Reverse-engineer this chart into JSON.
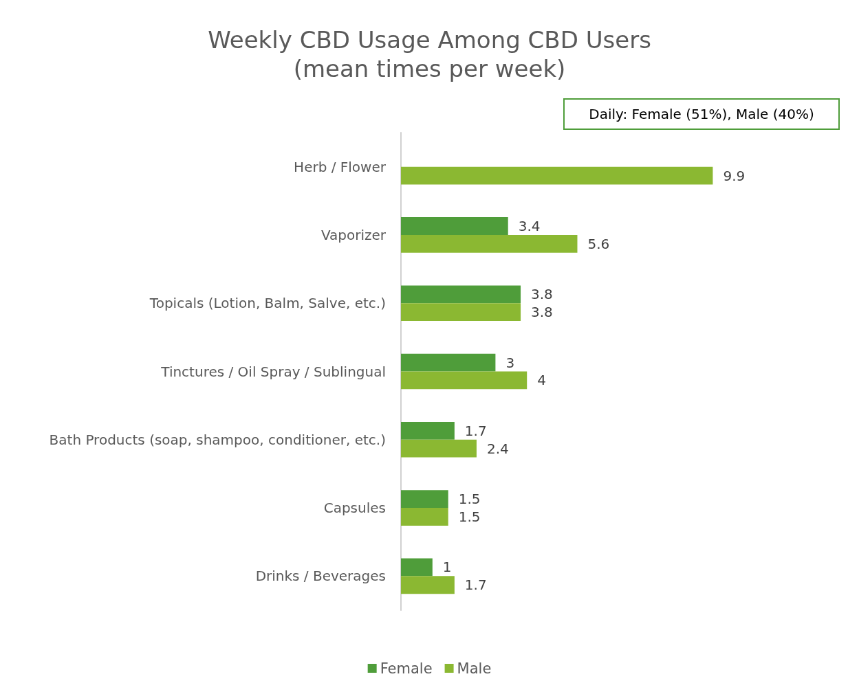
{
  "chart_data": {
    "type": "bar",
    "orientation": "horizontal",
    "title": "Weekly CBD Usage Among CBD Users",
    "subtitle": "(mean times per week)",
    "categories": [
      "Herb / Flower",
      "Vaporizer",
      "Topicals (Lotion, Balm, Salve, etc.)",
      "Tinctures / Oil Spray / Sublingual",
      "Bath Products (soap, shampoo, conditioner, etc.)",
      "Capsules",
      "Drinks / Beverages"
    ],
    "series": [
      {
        "name": "Female",
        "color": "#4f9d3a",
        "values": [
          null,
          3.4,
          3.8,
          3,
          1.7,
          1.5,
          1
        ]
      },
      {
        "name": "Male",
        "color": "#8bb832",
        "values": [
          9.9,
          5.6,
          3.8,
          4,
          2.4,
          1.5,
          1.7
        ]
      }
    ],
    "annotations": [
      "Daily: Female (51%), Male (40%)"
    ],
    "data_labels": true,
    "legend": "bottom"
  }
}
